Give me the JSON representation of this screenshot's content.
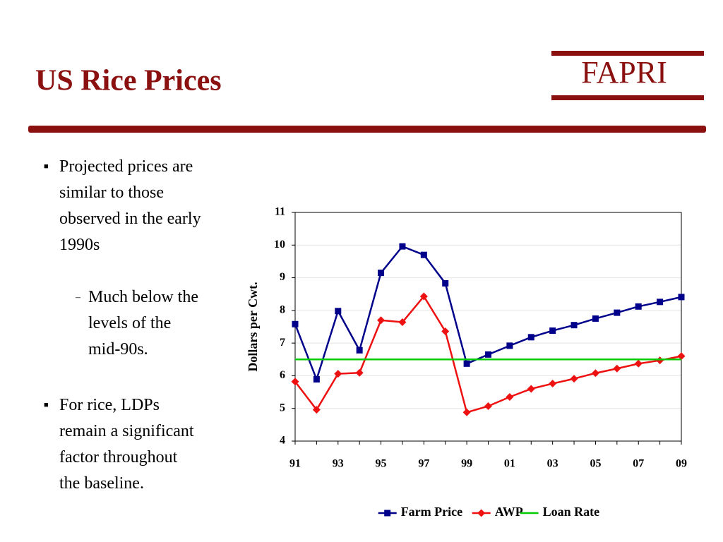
{
  "title": "US Rice Prices",
  "logo": "FAPRI",
  "bullets": [
    {
      "text": "Projected prices are similar to those observed in the early 1990s",
      "sub": [
        "Much below the levels of the mid-90s."
      ]
    },
    {
      "text": "For rice, LDPs remain a significant factor throughout the baseline."
    }
  ],
  "chart_data": {
    "type": "line",
    "y_label": "Dollars per Cwt.",
    "categories": [
      "91",
      null,
      "93",
      null,
      "95",
      null,
      "97",
      null,
      "99",
      null,
      "01",
      null,
      "03",
      null,
      "05",
      null,
      "07",
      null,
      "09"
    ],
    "series": [
      {
        "name": "Farm Price",
        "color": "#00008b",
        "marker": "square",
        "values": [
          7.58,
          5.89,
          7.98,
          6.78,
          9.15,
          9.96,
          9.7,
          8.83,
          6.37,
          6.65,
          6.92,
          7.18,
          7.38,
          7.55,
          7.75,
          7.93,
          8.12,
          8.26,
          8.41
        ]
      },
      {
        "name": "AWP",
        "color": "#ee1111",
        "marker": "diamond",
        "values": [
          5.82,
          4.96,
          6.06,
          6.09,
          7.7,
          7.64,
          8.43,
          7.36,
          4.88,
          5.07,
          5.35,
          5.6,
          5.76,
          5.91,
          6.08,
          6.22,
          6.37,
          6.47,
          6.6
        ]
      },
      {
        "name": "Loan Rate",
        "color": "#00cc00",
        "marker": "none",
        "values": [
          6.5,
          6.5,
          6.5,
          6.5,
          6.5,
          6.5,
          6.5,
          6.5,
          6.5,
          6.5,
          6.5,
          6.5,
          6.5,
          6.5,
          6.5,
          6.5,
          6.5,
          6.5,
          6.5
        ]
      }
    ],
    "ylim": [
      4,
      11
    ],
    "yticks": [
      4,
      5,
      6,
      7,
      8,
      9,
      10,
      11
    ],
    "grid": true,
    "legend": "bottom"
  }
}
